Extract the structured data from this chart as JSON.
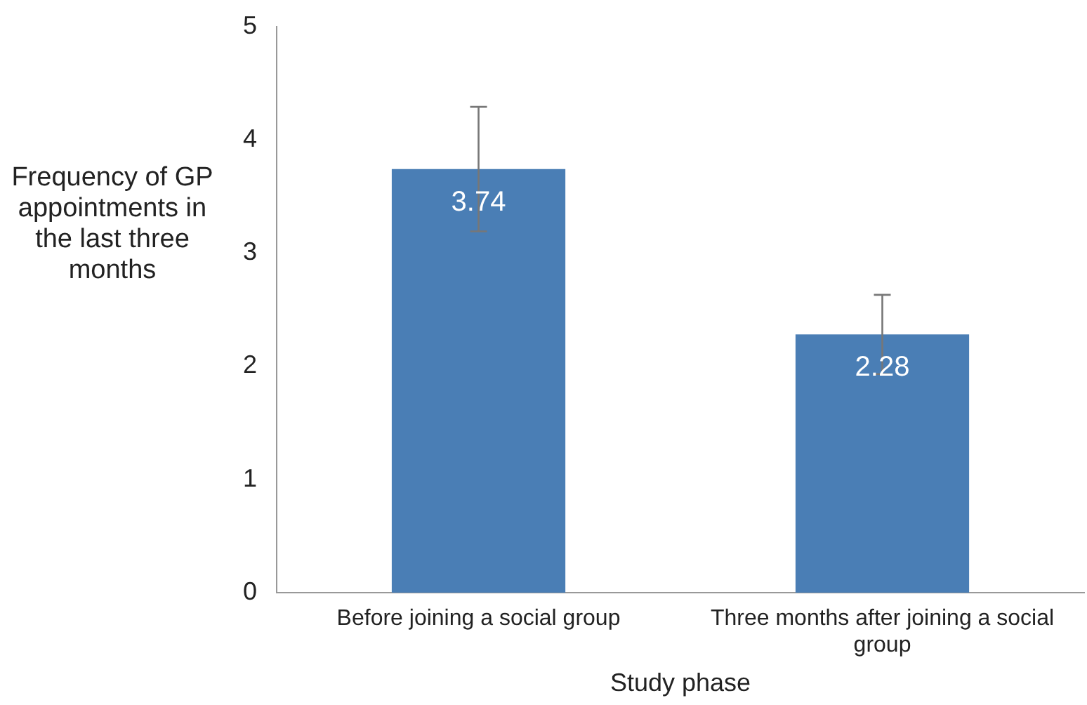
{
  "chart_data": {
    "type": "bar",
    "xlabel": "Study phase",
    "ylabel": "Frequency of GP appointments in the last three months",
    "categories": [
      "Before joining a social group",
      "Three months after joining a social group"
    ],
    "values": [
      3.74,
      2.28
    ],
    "errors": [
      0.55,
      0.35
    ],
    "color": "#4a7eb5",
    "ylim": [
      0,
      5
    ],
    "yticks": [
      0,
      1,
      2,
      3,
      4,
      5
    ],
    "grid": false,
    "legend": false,
    "data_labels": true
  }
}
